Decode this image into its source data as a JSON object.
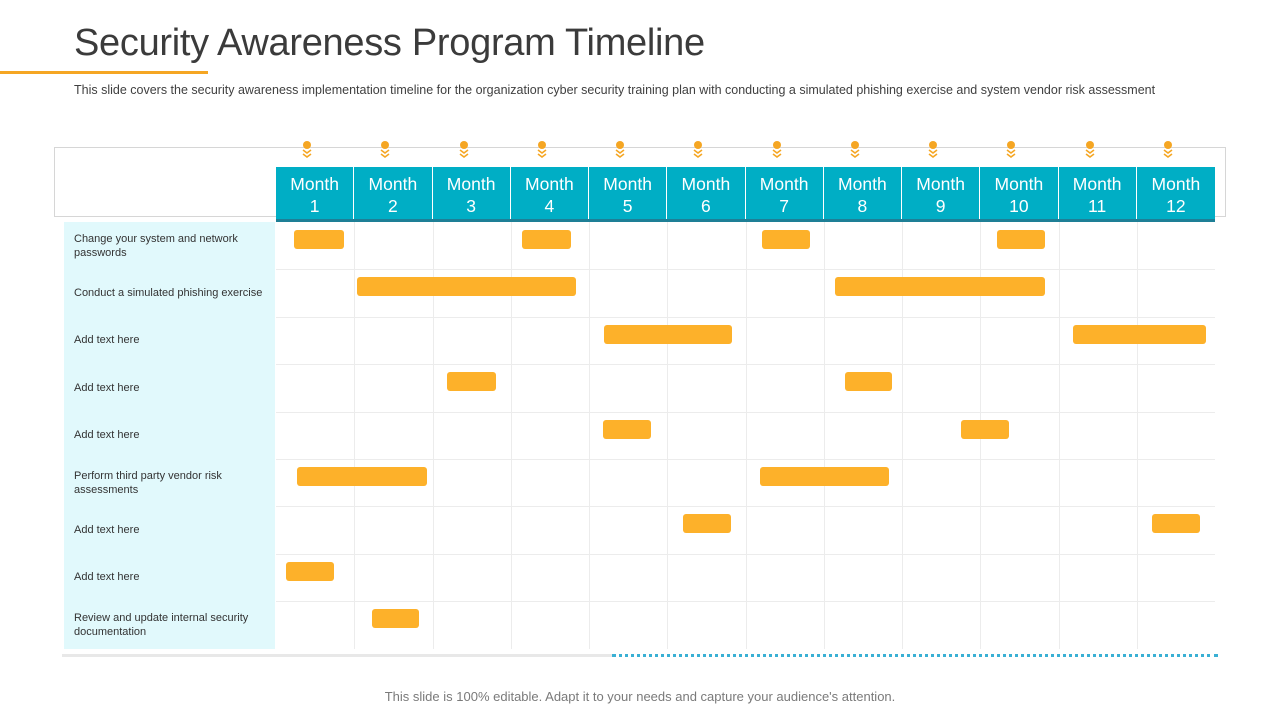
{
  "slide": {
    "title": "Security Awareness Program Timeline",
    "subtitle": "This slide covers the security awareness implementation timeline for the organization cyber security training plan with conducting a simulated phishing exercise and system vendor risk assessment",
    "footnote": "This slide is 100% editable. Adapt it to your needs and capture your audience's attention."
  },
  "colors": {
    "accent": "#f5a623",
    "bar": "#fdb12a",
    "header": "#00aec5",
    "label_bg": "#e1f9fc"
  },
  "months": [
    {
      "word": "Month",
      "num": "1"
    },
    {
      "word": "Month",
      "num": "2"
    },
    {
      "word": "Month",
      "num": "3"
    },
    {
      "word": "Month",
      "num": "4"
    },
    {
      "word": "Month",
      "num": "5"
    },
    {
      "word": "Month",
      "num": "6"
    },
    {
      "word": "Month",
      "num": "7"
    },
    {
      "word": "Month",
      "num": "8"
    },
    {
      "word": "Month",
      "num": "9"
    },
    {
      "word": "Month",
      "num": "10"
    },
    {
      "word": "Month",
      "num": "11"
    },
    {
      "word": "Month",
      "num": "12"
    }
  ],
  "tasks": [
    {
      "label": "Change your system and network passwords",
      "bars": [
        [
          1.23,
          1.87
        ],
        [
          4.15,
          4.77
        ],
        [
          7.21,
          7.83
        ],
        [
          10.21,
          10.83
        ]
      ]
    },
    {
      "label": "Conduct a simulated phishing exercise",
      "bars": [
        [
          2.04,
          4.83
        ],
        [
          8.14,
          10.83
        ]
      ]
    },
    {
      "label": "Add text here",
      "bars": [
        [
          5.19,
          6.83
        ],
        [
          11.19,
          12.88
        ]
      ]
    },
    {
      "label": "Add text here",
      "bars": [
        [
          3.19,
          3.81
        ],
        [
          8.27,
          8.87
        ]
      ]
    },
    {
      "label": "Add text here",
      "bars": [
        [
          5.18,
          5.79
        ],
        [
          9.76,
          10.37
        ]
      ]
    },
    {
      "label": "Perform third party vendor risk assessments",
      "bars": [
        [
          1.27,
          2.93
        ],
        [
          7.18,
          8.83
        ]
      ]
    },
    {
      "label": "Add text here",
      "bars": [
        [
          6.2,
          6.81
        ],
        [
          12.2,
          12.81
        ]
      ]
    },
    {
      "label": "Add text here",
      "bars": [
        [
          1.13,
          1.74
        ]
      ]
    },
    {
      "label": "Review and update internal security documentation",
      "bars": [
        [
          2.23,
          2.83
        ]
      ]
    }
  ]
}
